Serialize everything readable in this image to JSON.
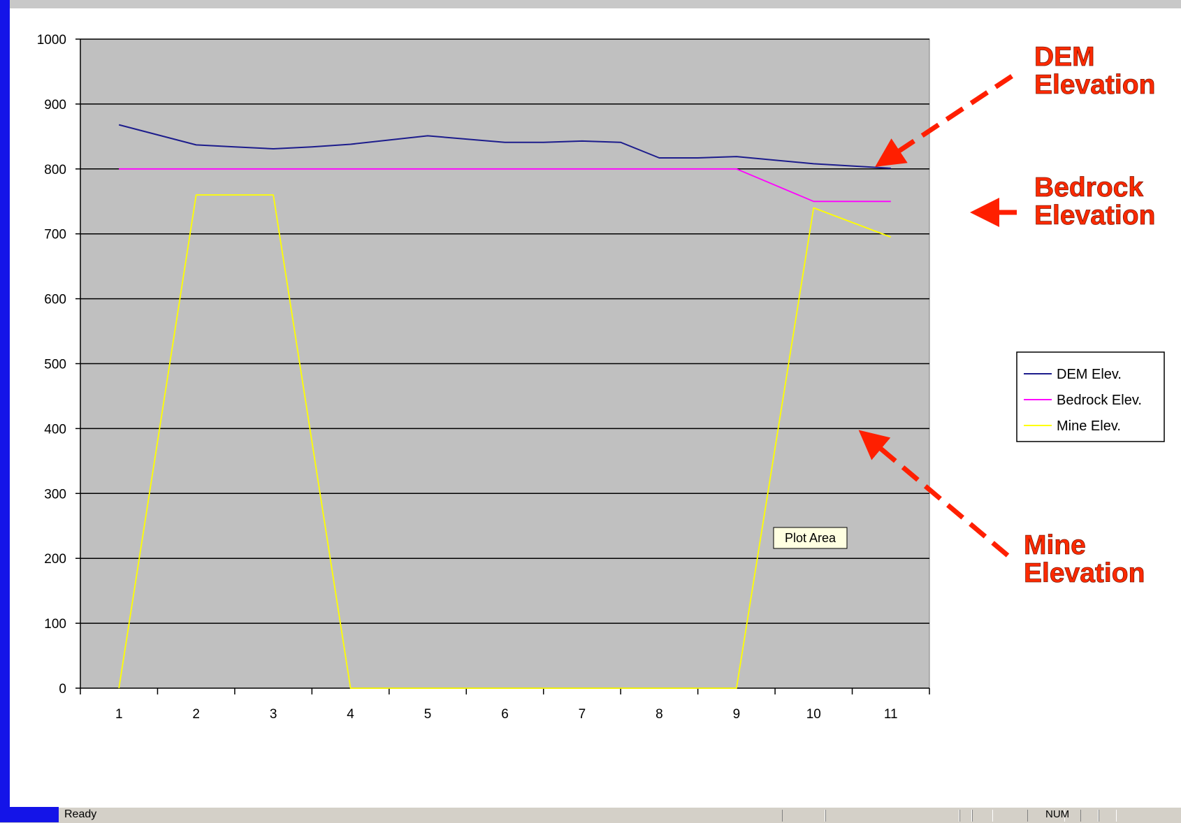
{
  "window": {
    "status_text": "Ready",
    "status_num": "NUM",
    "accent_color": "#1414e8"
  },
  "chart_data": {
    "type": "line",
    "x": [
      1,
      2,
      3,
      4,
      5,
      6,
      7,
      8,
      9,
      10,
      11
    ],
    "ylim": [
      0,
      1000
    ],
    "yticks": [
      0,
      100,
      200,
      300,
      400,
      500,
      600,
      700,
      800,
      900,
      1000
    ],
    "grid": true,
    "plot_background": "#c0c0c0",
    "legend_position": "right",
    "series": [
      {
        "name": "DEM Elev.",
        "color": "#1c1c8c",
        "points": [
          [
            1,
            868
          ],
          [
            2,
            837
          ],
          [
            2.5,
            834
          ],
          [
            3,
            831
          ],
          [
            3.5,
            834
          ],
          [
            4,
            838
          ],
          [
            5,
            851
          ],
          [
            6,
            841
          ],
          [
            6.5,
            841
          ],
          [
            7,
            843
          ],
          [
            7.5,
            841
          ],
          [
            8,
            817
          ],
          [
            8.5,
            817
          ],
          [
            9,
            819
          ],
          [
            10,
            808
          ],
          [
            11,
            801
          ]
        ]
      },
      {
        "name": "Bedrock Elev.",
        "color": "#ff00ff",
        "points": [
          [
            1,
            800
          ],
          [
            2,
            800
          ],
          [
            3,
            800
          ],
          [
            4,
            800
          ],
          [
            5,
            800
          ],
          [
            6,
            800
          ],
          [
            7,
            800
          ],
          [
            8,
            800
          ],
          [
            9,
            800
          ],
          [
            10,
            750
          ],
          [
            11,
            750
          ]
        ]
      },
      {
        "name": "Mine Elev.",
        "color": "#ffff00",
        "points": [
          [
            1,
            0
          ],
          [
            2,
            760
          ],
          [
            3,
            760
          ],
          [
            4,
            0
          ],
          [
            5,
            0
          ],
          [
            6,
            0
          ],
          [
            7,
            0
          ],
          [
            8,
            0
          ],
          [
            9,
            0
          ],
          [
            10,
            740
          ],
          [
            11,
            695
          ]
        ]
      }
    ],
    "annotations": [
      {
        "lines": [
          "DEM",
          "Elevation"
        ],
        "target_series": "DEM Elev."
      },
      {
        "lines": [
          "Bedrock",
          "Elevation"
        ],
        "target_series": "Bedrock Elev."
      },
      {
        "lines": [
          "Mine",
          "Elevation"
        ],
        "target_series": "Mine Elev."
      }
    ],
    "tooltip": "Plot Area"
  }
}
